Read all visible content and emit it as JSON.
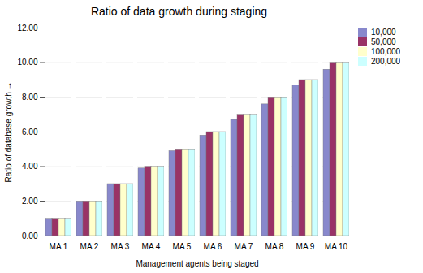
{
  "chart_data": {
    "type": "bar",
    "title": "Ratio of data growth during staging",
    "xlabel": "Management agents being staged",
    "ylabel": "Ratio of database growth",
    "categories": [
      "MA 1",
      "MA 2",
      "MA 3",
      "MA 4",
      "MA 5",
      "MA 6",
      "MA 7",
      "MA 8",
      "MA 9",
      "MA 10"
    ],
    "series": [
      {
        "name": "10,000",
        "color": "#8888cc",
        "values": [
          1.0,
          2.0,
          3.0,
          3.9,
          4.9,
          5.8,
          6.7,
          7.6,
          8.7,
          9.6
        ]
      },
      {
        "name": "50,000",
        "color": "#993366",
        "values": [
          1.0,
          2.0,
          3.0,
          4.0,
          5.0,
          6.0,
          7.0,
          8.0,
          9.0,
          10.0
        ]
      },
      {
        "name": "100,000",
        "color": "#ffffcc",
        "values": [
          1.0,
          2.0,
          3.0,
          4.0,
          5.0,
          6.0,
          7.0,
          8.0,
          9.0,
          10.0
        ]
      },
      {
        "name": "200,000",
        "color": "#ccffff",
        "values": [
          1.0,
          2.0,
          3.0,
          4.0,
          5.0,
          6.0,
          7.0,
          8.0,
          9.0,
          10.0
        ]
      }
    ],
    "ylim": [
      0.0,
      12.0
    ],
    "yticks": [
      {
        "value": 0,
        "label": "0.00"
      },
      {
        "value": 2,
        "label": "2.00"
      },
      {
        "value": 4,
        "label": "4.00"
      },
      {
        "value": 6,
        "label": "6.00"
      },
      {
        "value": 8,
        "label": "8.00"
      },
      {
        "value": 10,
        "label": "10.00"
      },
      {
        "value": 12,
        "label": "12.00"
      }
    ],
    "grid": true,
    "legend": "right"
  }
}
